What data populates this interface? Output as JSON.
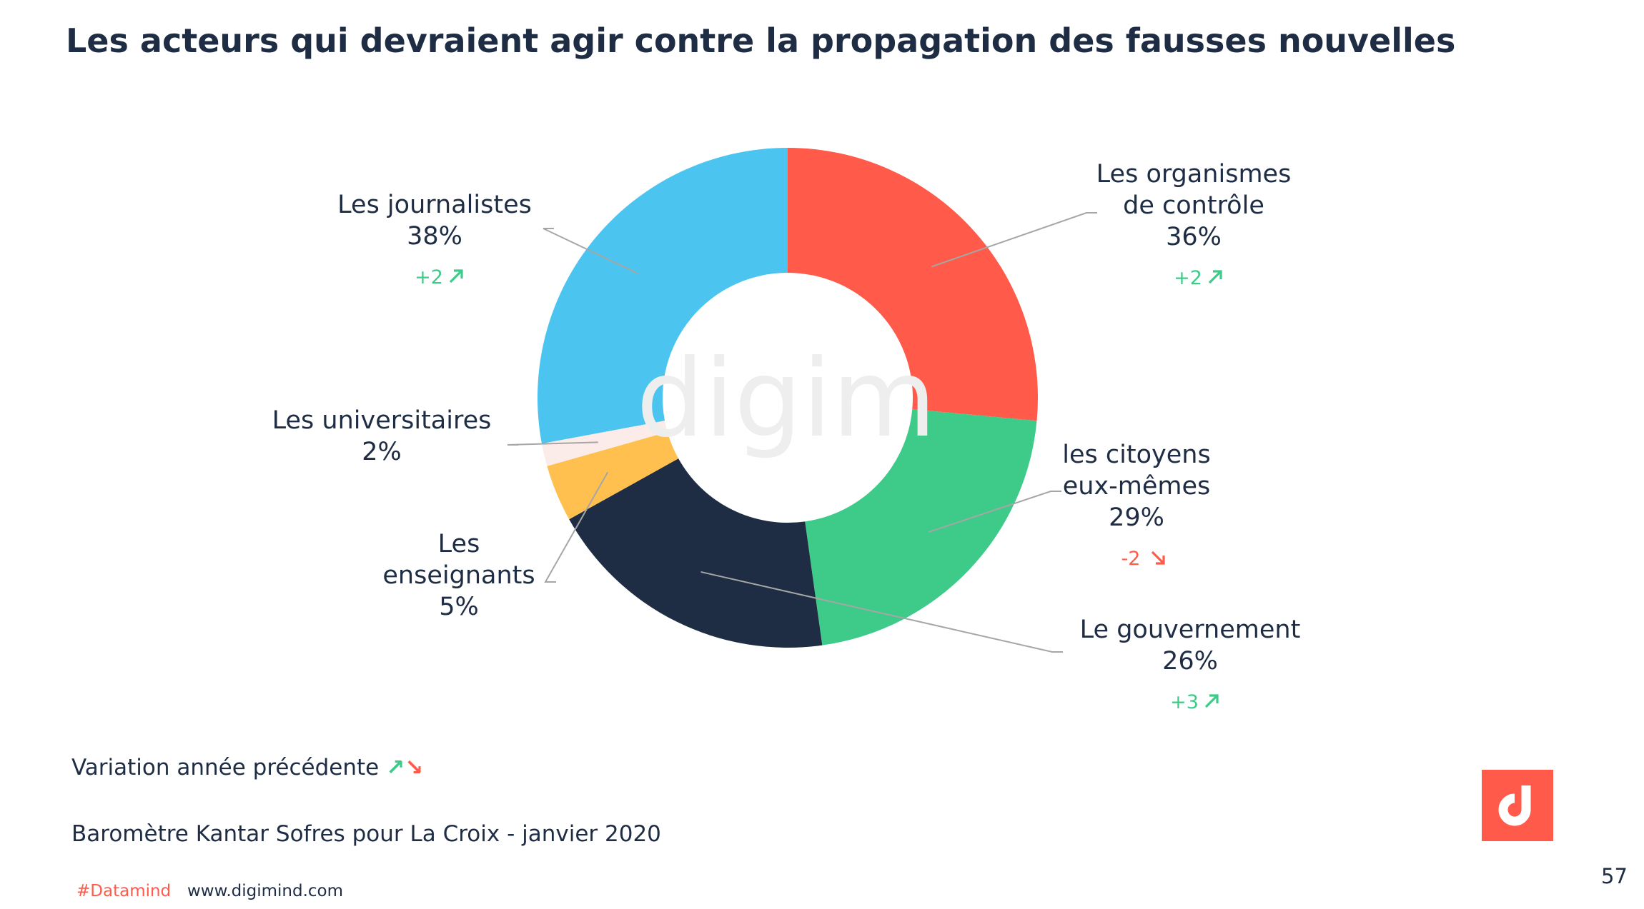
{
  "title": "Les acteurs qui devraient agir contre la propagation des fausses nouvelles",
  "chart_data": {
    "type": "pie",
    "slices": [
      {
        "label_lines": [
          "Les organismes",
          "de contrôle"
        ],
        "value": 36,
        "value_label": "36%",
        "variation": "+2",
        "trend": "up",
        "color": "#ff5a4a"
      },
      {
        "label_lines": [
          "les  citoyens",
          "eux-mêmes"
        ],
        "value": 29,
        "value_label": "29%",
        "variation": "-2",
        "trend": "down",
        "color": "#3ecb8a"
      },
      {
        "label_lines": [
          "Le gouvernement"
        ],
        "value": 26,
        "value_label": "26%",
        "variation": "+3",
        "trend": "up",
        "color": "#1f2d44"
      },
      {
        "label_lines": [
          "Les",
          "enseignants"
        ],
        "value": 5,
        "value_label": "5%",
        "variation": "",
        "trend": "",
        "color": "#ffc04f"
      },
      {
        "label_lines": [
          "Les universitaires"
        ],
        "value": 2,
        "value_label": "2%",
        "variation": "",
        "trend": "",
        "color": "#fbecea"
      },
      {
        "label_lines": [
          "Les journalistes"
        ],
        "value": 38,
        "value_label": "38%",
        "variation": "+2",
        "trend": "up",
        "color": "#4bc4ef"
      }
    ],
    "colors": {
      "up": "#3ecb8a",
      "down": "#ff5a4a"
    }
  },
  "watermark": "digim",
  "legend": {
    "text": "Variation année précédente ",
    "up_arrow": "↗",
    "down_arrow": "↘"
  },
  "source": "Baromètre Kantar Sofres pour La Croix   -  janvier 2020",
  "footer": {
    "hashtag": "#Datamind",
    "website": "www.digimind.com",
    "page_number": "57"
  },
  "logo": {
    "color": "#ff5a4a",
    "icon": "digimind-logo-icon"
  }
}
